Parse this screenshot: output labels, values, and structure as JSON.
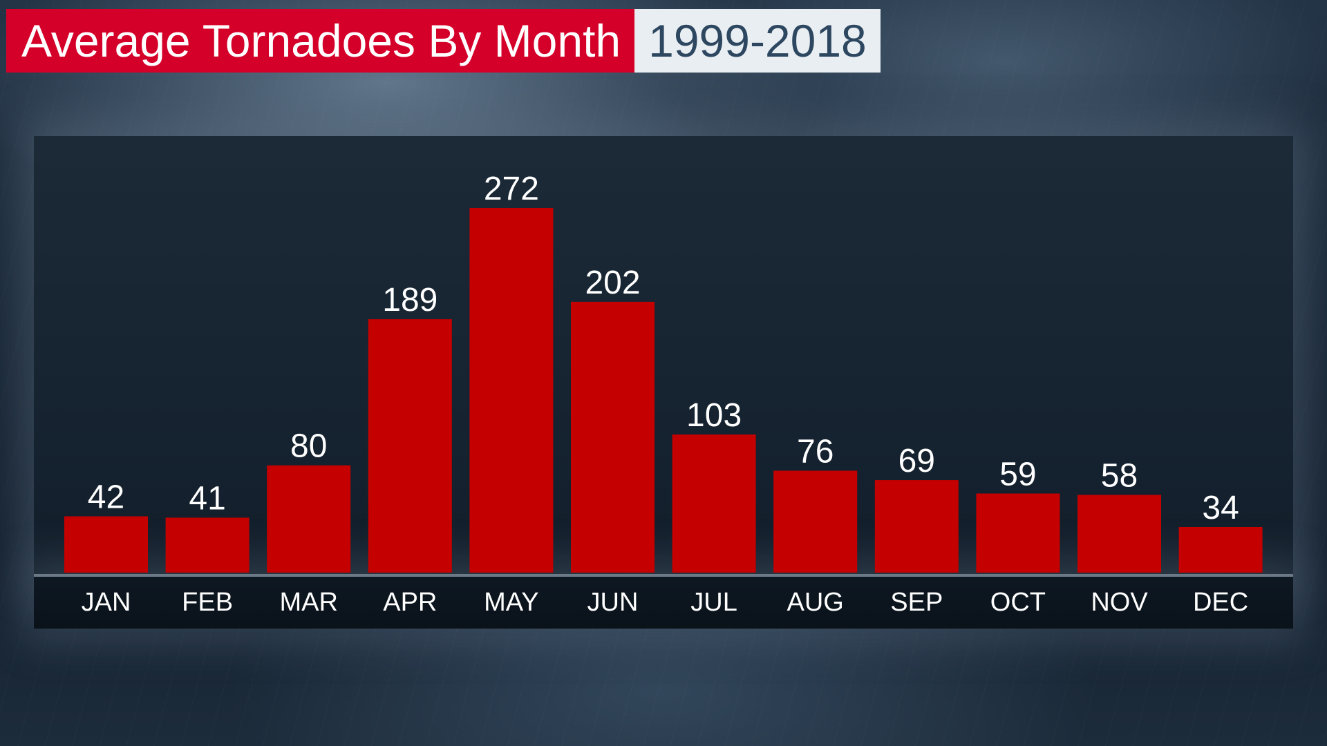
{
  "header": {
    "title": "Average Tornadoes By Month",
    "subtitle": "1999-2018"
  },
  "colors": {
    "bar": "#c40000",
    "title_bg": "#d4002a",
    "subtitle_bg": "#e9eef2",
    "subtitle_text": "#2d4760",
    "label_text": "#ffffff"
  },
  "chart_data": {
    "type": "bar",
    "title": "Average Tornadoes By Month",
    "subtitle": "1999-2018",
    "categories": [
      "JAN",
      "FEB",
      "MAR",
      "APR",
      "MAY",
      "JUN",
      "JUL",
      "AUG",
      "SEP",
      "OCT",
      "NOV",
      "DEC"
    ],
    "values": [
      42,
      41,
      80,
      189,
      272,
      202,
      103,
      76,
      69,
      59,
      58,
      34
    ],
    "xlabel": "",
    "ylabel": "",
    "ylim": [
      0,
      272
    ],
    "grid": false,
    "legend": "none",
    "data_labels": true
  }
}
